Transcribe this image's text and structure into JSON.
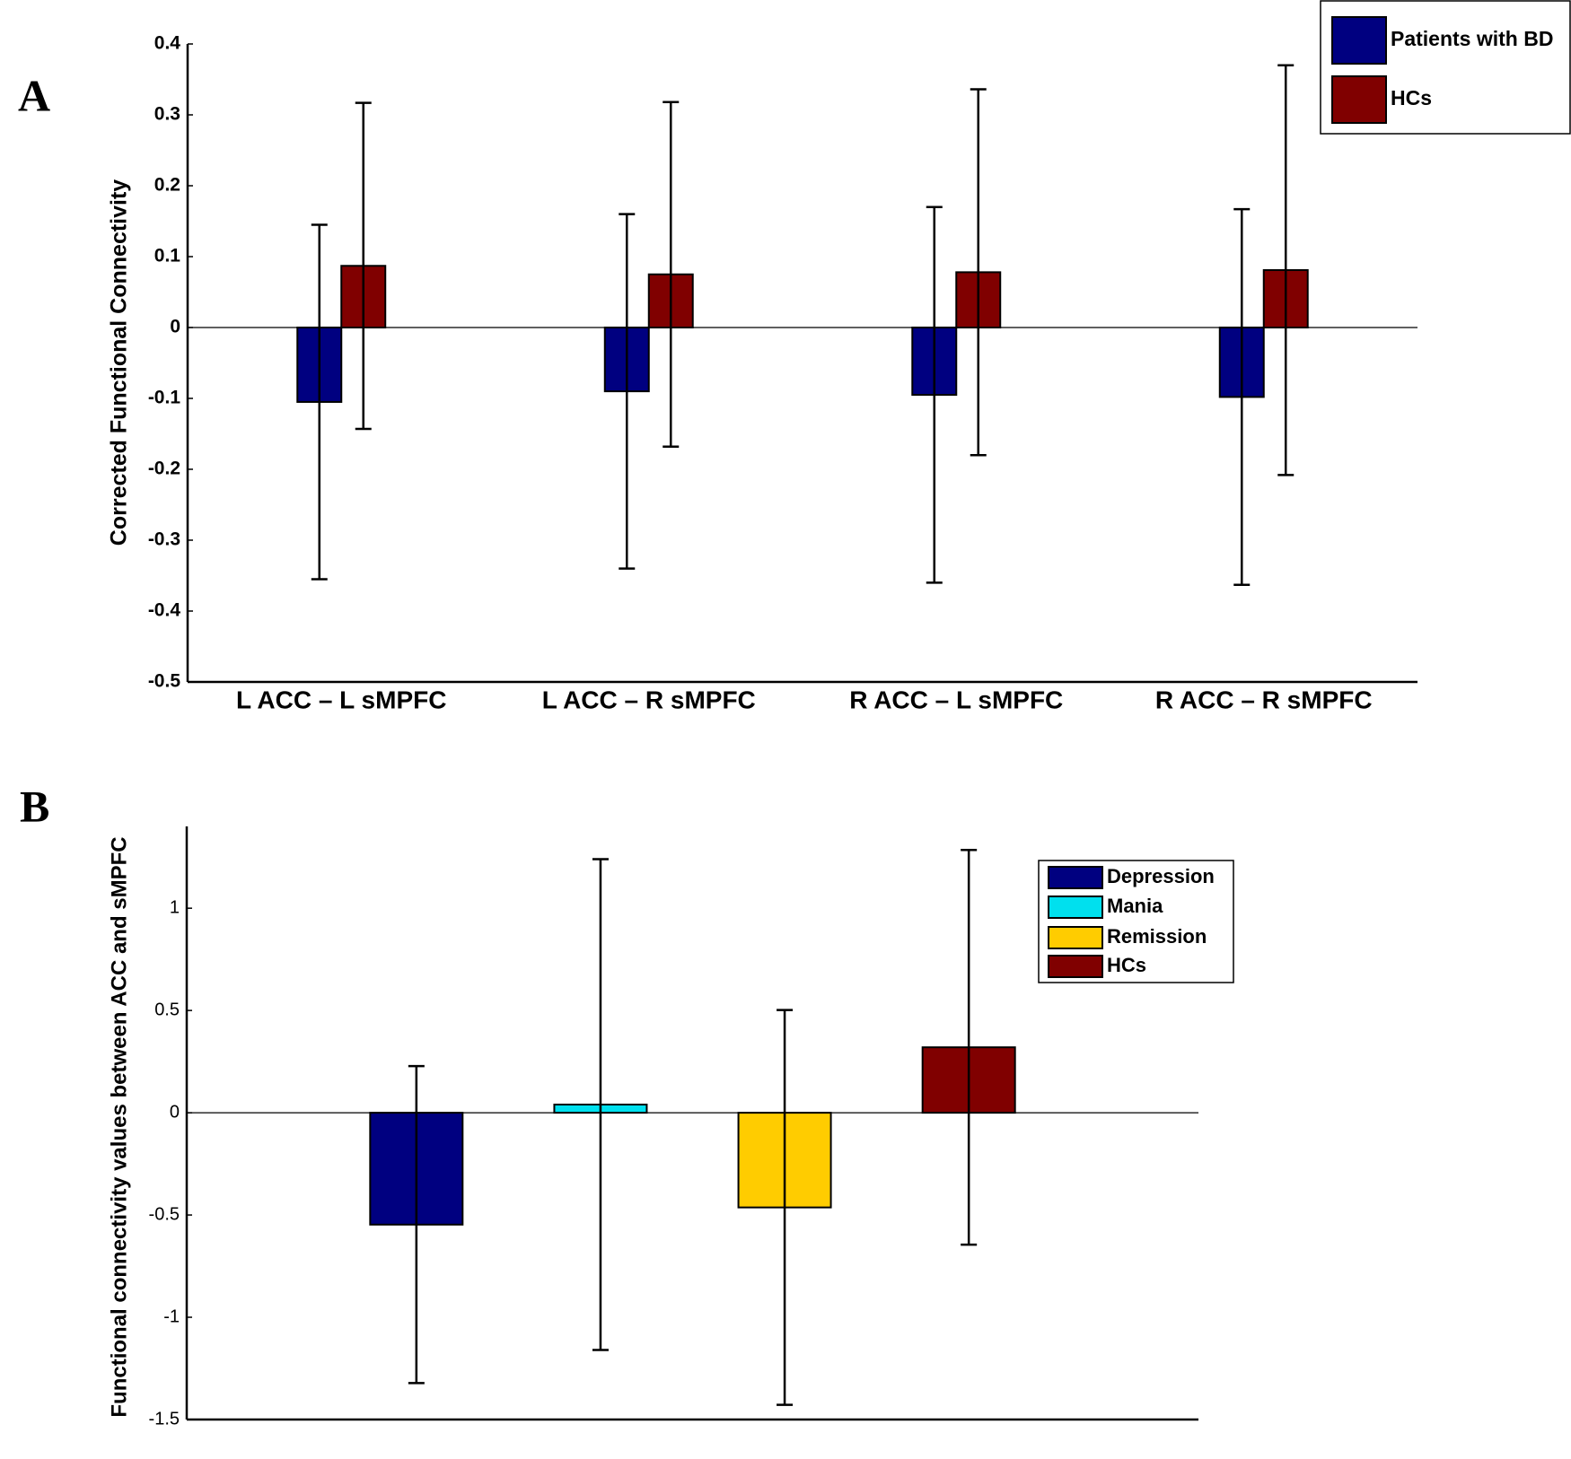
{
  "chart_data": [
    {
      "type": "bar",
      "panel_label": "A",
      "ylabel": "Corrected Functional Connectivity",
      "categories": [
        "L ACC – L sMPFC",
        "L ACC – R sMPFC",
        "R ACC – L sMPFC",
        "R ACC – R sMPFC"
      ],
      "series": [
        {
          "name": "Patients with BD",
          "color": "#000080",
          "values": [
            -0.105,
            -0.09,
            -0.095,
            -0.098
          ],
          "errors": [
            0.25,
            0.25,
            0.265,
            0.265
          ]
        },
        {
          "name": "HCs",
          "color": "#800000",
          "values": [
            0.087,
            0.075,
            0.078,
            0.081
          ],
          "errors": [
            0.23,
            0.243,
            0.258,
            0.289
          ]
        }
      ],
      "ylim": [
        -0.5,
        0.4
      ],
      "yticks": [
        -0.5,
        -0.4,
        -0.3,
        -0.2,
        -0.1,
        0,
        0.1,
        0.2,
        0.3,
        0.4
      ],
      "legend": "upper right"
    },
    {
      "type": "bar",
      "panel_label": "B",
      "ylabel": "Functional connectivity values between ACC and sMPFC",
      "categories": [
        null
      ],
      "series": [
        {
          "name": "Depression",
          "color": "#000080",
          "values": [
            -0.547
          ],
          "errors": [
            0.775
          ]
        },
        {
          "name": "Mania",
          "color": "#00e0ee",
          "values": [
            0.04
          ],
          "errors": [
            1.2
          ]
        },
        {
          "name": "Remission",
          "color": "#ffcc00",
          "values": [
            -0.463
          ],
          "errors": [
            0.965
          ]
        },
        {
          "name": "HCs",
          "color": "#800000",
          "values": [
            0.32
          ],
          "errors": [
            0.965
          ]
        }
      ],
      "ylim": [
        -1.5,
        1.4
      ],
      "yticks": [
        -1.5,
        -1,
        -0.5,
        0,
        0.5,
        1
      ],
      "legend": "upper right"
    }
  ]
}
